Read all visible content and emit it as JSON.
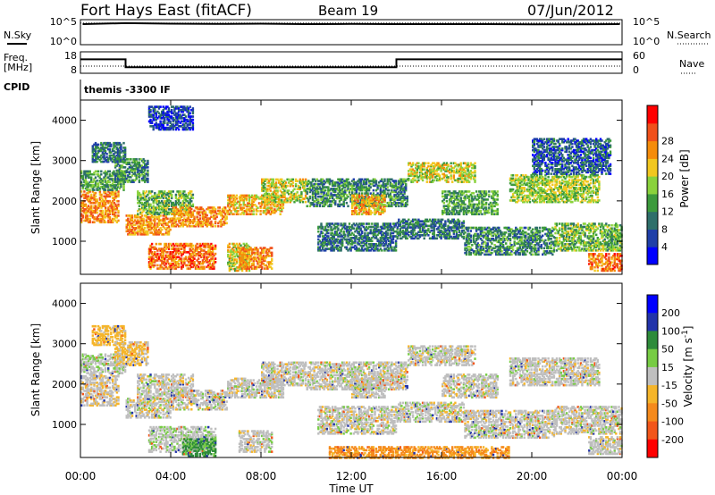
{
  "header": {
    "station": "Fort Hays East (fitACF)",
    "beam": "Beam 19",
    "date": "07/Jun/2012"
  },
  "side_labels": {
    "n_sky": "N.Sky",
    "n_search": "N.Search",
    "freq_line1": "Freq.",
    "freq_line2": "[MHz]",
    "nave": "Nave",
    "cpid": "CPID",
    "cpid_value": "themis -3300 IF"
  },
  "xaxis": {
    "label": "Time UT",
    "ticks": [
      "00:00",
      "04:00",
      "08:00",
      "12:00",
      "16:00",
      "20:00",
      "00:00"
    ]
  },
  "noise_axis": {
    "left_ticks": [
      "10^5",
      "10^0"
    ],
    "right_ticks": [
      "10^5",
      "10^0"
    ]
  },
  "freq_axis": {
    "left_ticks": [
      "18",
      "8"
    ],
    "right_ticks": [
      "60",
      "0"
    ]
  },
  "chart_data": [
    {
      "type": "line",
      "panel": "noise",
      "series": [
        {
          "name": "N.Sky",
          "x_hours": [
            0.1,
            2,
            4,
            6,
            8,
            10,
            12,
            14,
            16,
            18,
            20,
            22,
            23.9
          ],
          "log10_values": [
            4.1,
            4.3,
            4.2,
            4.15,
            4.2,
            4.1,
            4.15,
            4.1,
            4.1,
            4.1,
            4.05,
            4.05,
            4.1
          ]
        },
        {
          "name": "N.Search",
          "x_hours": [
            0,
            24
          ],
          "log10_values": [
            4.3,
            4.3
          ]
        }
      ],
      "ylim_log10": [
        0,
        5
      ],
      "xlim_hours": [
        0,
        24
      ]
    },
    {
      "type": "line",
      "panel": "frequency",
      "series": [
        {
          "name": "Freq.",
          "unit": "MHz",
          "x_hours": [
            0,
            2,
            2,
            14,
            14,
            24
          ],
          "values": [
            14.5,
            14.5,
            10.8,
            10.8,
            14.5,
            14.5
          ]
        },
        {
          "name": "Nave",
          "x_hours": [
            0,
            24
          ],
          "values": [
            20,
            20
          ]
        }
      ],
      "ylim_left": [
        8,
        18
      ],
      "ylim_right": [
        0,
        60
      ],
      "xlim_hours": [
        0,
        24
      ]
    },
    {
      "type": "heatmap",
      "panel": "power",
      "ylabel": "Slant Range [km]",
      "yticks": [
        1000,
        2000,
        3000,
        4000
      ],
      "ylim": [
        180,
        4500
      ],
      "xlim_hours": [
        0,
        24
      ],
      "colorbar": {
        "label": "Power [dB]",
        "ticks": [
          "4",
          "8",
          "12",
          "16",
          "20",
          "24",
          "28"
        ],
        "colors": [
          "#0000ff",
          "#1f3fa8",
          "#2e6f6a",
          "#3c9a3c",
          "#8ad23c",
          "#f2c71f",
          "#f58c0a",
          "#f0501a",
          "#ff0000"
        ]
      },
      "echo_bands": [
        {
          "x": [
            0,
            1.7
          ],
          "y": [
            1500,
            2300
          ],
          "db": 24
        },
        {
          "x": [
            0,
            2
          ],
          "y": [
            2300,
            2800
          ],
          "db": 12
        },
        {
          "x": [
            1.5,
            3
          ],
          "y": [
            2500,
            3100
          ],
          "db": 10
        },
        {
          "x": [
            0.5,
            2
          ],
          "y": [
            3000,
            3500
          ],
          "db": 8
        },
        {
          "x": [
            2,
            4
          ],
          "y": [
            1200,
            1700
          ],
          "db": 24
        },
        {
          "x": [
            2.5,
            5
          ],
          "y": [
            1700,
            2300
          ],
          "db": 14
        },
        {
          "x": [
            3,
            6
          ],
          "y": [
            350,
            1000
          ],
          "db": 26
        },
        {
          "x": [
            4,
            6.5
          ],
          "y": [
            1400,
            1900
          ],
          "db": 24
        },
        {
          "x": [
            6.5,
            9
          ],
          "y": [
            1700,
            2200
          ],
          "db": 22
        },
        {
          "x": [
            6.5,
            7.5
          ],
          "y": [
            300,
            1000
          ],
          "db": 18
        },
        {
          "x": [
            7,
            8.5
          ],
          "y": [
            350,
            900
          ],
          "db": 24
        },
        {
          "x": [
            8,
            10
          ],
          "y": [
            2000,
            2600
          ],
          "db": 18
        },
        {
          "x": [
            10,
            14.5
          ],
          "y": [
            1900,
            2600
          ],
          "db": 10
        },
        {
          "x": [
            10.5,
            14
          ],
          "y": [
            800,
            1500
          ],
          "db": 8
        },
        {
          "x": [
            12,
            13.5
          ],
          "y": [
            1700,
            2200
          ],
          "db": 22
        },
        {
          "x": [
            14,
            17
          ],
          "y": [
            1100,
            1600
          ],
          "db": 8
        },
        {
          "x": [
            14.5,
            17.5
          ],
          "y": [
            2500,
            3000
          ],
          "db": 18
        },
        {
          "x": [
            16,
            18.5
          ],
          "y": [
            1700,
            2300
          ],
          "db": 12
        },
        {
          "x": [
            17,
            21
          ],
          "y": [
            700,
            1400
          ],
          "db": 10
        },
        {
          "x": [
            19,
            23
          ],
          "y": [
            2000,
            2700
          ],
          "db": 16
        },
        {
          "x": [
            21,
            24
          ],
          "y": [
            800,
            1500
          ],
          "db": 14
        },
        {
          "x": [
            22.5,
            24
          ],
          "y": [
            300,
            750
          ],
          "db": 26
        },
        {
          "x": [
            20,
            23.5
          ],
          "y": [
            2700,
            3600
          ],
          "db": 6
        },
        {
          "x": [
            3,
            5
          ],
          "y": [
            3800,
            4400
          ],
          "db": 4
        }
      ]
    },
    {
      "type": "heatmap",
      "panel": "velocity",
      "ylabel": "Slant Range [km]",
      "yticks": [
        1000,
        2000,
        3000,
        4000
      ],
      "ylim": [
        180,
        4500
      ],
      "xlim_hours": [
        0,
        24
      ],
      "colorbar": {
        "label": "Velocity [m s^-1]",
        "ticks": [
          "200",
          "100",
          "50",
          "15",
          "-15",
          "-50",
          "-100",
          "-200"
        ],
        "colors": [
          "#0000ff",
          "#2233aa",
          "#2e8b3a",
          "#77cc44",
          "#bfbfbf",
          "#f5b52a",
          "#f58a1c",
          "#f2561a",
          "#ff0000"
        ]
      },
      "echo_bands": [
        {
          "x": [
            0,
            1.7
          ],
          "y": [
            1500,
            2300
          ],
          "v": -5
        },
        {
          "x": [
            0,
            2
          ],
          "y": [
            2300,
            2800
          ],
          "v": 5
        },
        {
          "x": [
            1.5,
            3
          ],
          "y": [
            2500,
            3100
          ],
          "v": -20
        },
        {
          "x": [
            0.5,
            2
          ],
          "y": [
            3000,
            3500
          ],
          "v": -30
        },
        {
          "x": [
            2,
            4
          ],
          "y": [
            1200,
            1700
          ],
          "v": 0
        },
        {
          "x": [
            2.5,
            5
          ],
          "y": [
            1700,
            2300
          ],
          "v": 0
        },
        {
          "x": [
            3,
            6
          ],
          "y": [
            350,
            1000
          ],
          "v": 5
        },
        {
          "x": [
            4.5,
            6
          ],
          "y": [
            250,
            700
          ],
          "v": 60
        },
        {
          "x": [
            4,
            6.5
          ],
          "y": [
            1400,
            1900
          ],
          "v": 0
        },
        {
          "x": [
            6.5,
            9
          ],
          "y": [
            1700,
            2200
          ],
          "v": 0
        },
        {
          "x": [
            7,
            8.5
          ],
          "y": [
            350,
            900
          ],
          "v": 0
        },
        {
          "x": [
            8,
            10
          ],
          "y": [
            2000,
            2600
          ],
          "v": 0
        },
        {
          "x": [
            10,
            14.5
          ],
          "y": [
            1900,
            2600
          ],
          "v": 0
        },
        {
          "x": [
            10.5,
            14
          ],
          "y": [
            800,
            1500
          ],
          "v": 0
        },
        {
          "x": [
            12,
            13.5
          ],
          "y": [
            1700,
            2200
          ],
          "v": 0
        },
        {
          "x": [
            14,
            17
          ],
          "y": [
            1100,
            1600
          ],
          "v": 0
        },
        {
          "x": [
            14.5,
            17.5
          ],
          "y": [
            2500,
            3000
          ],
          "v": 0
        },
        {
          "x": [
            16,
            18.5
          ],
          "y": [
            1700,
            2300
          ],
          "v": 0
        },
        {
          "x": [
            17,
            21
          ],
          "y": [
            700,
            1400
          ],
          "v": 0
        },
        {
          "x": [
            19,
            23
          ],
          "y": [
            2000,
            2700
          ],
          "v": 0
        },
        {
          "x": [
            21,
            24
          ],
          "y": [
            800,
            1500
          ],
          "v": 0
        },
        {
          "x": [
            22.5,
            24
          ],
          "y": [
            300,
            750
          ],
          "v": 0
        },
        {
          "x": [
            11,
            19
          ],
          "y": [
            200,
            500
          ],
          "v": -60
        }
      ]
    }
  ]
}
